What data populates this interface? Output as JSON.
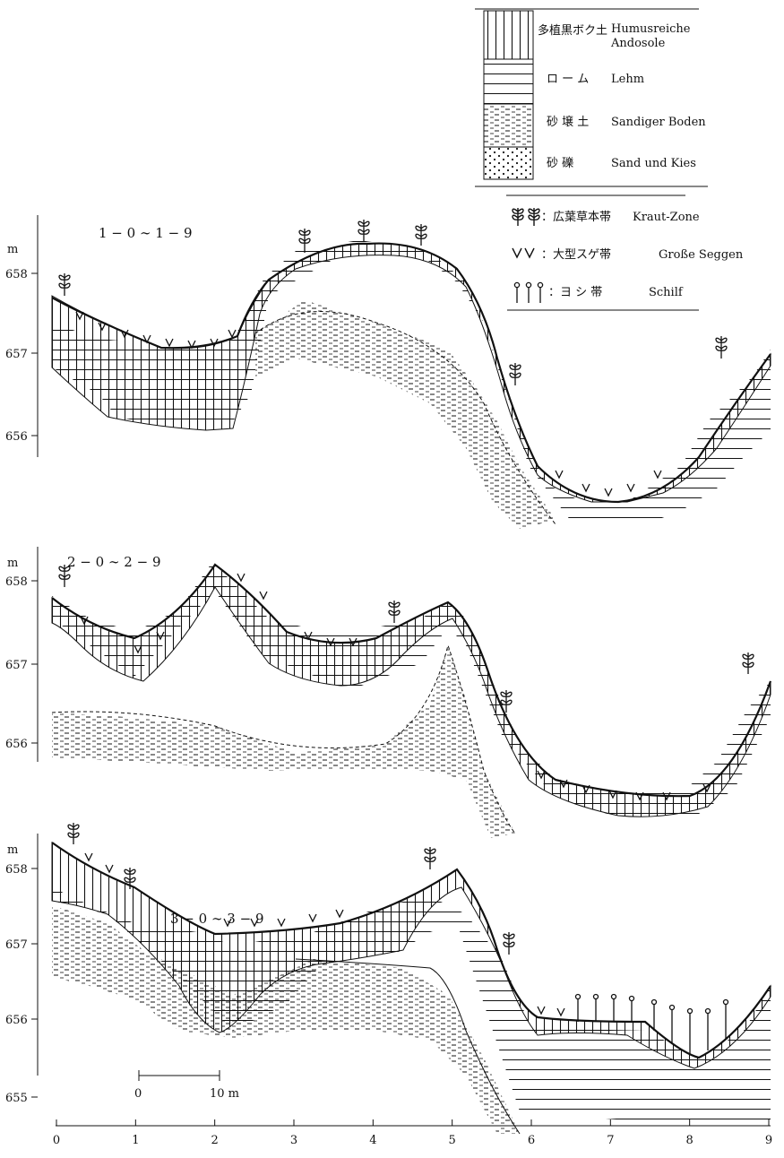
{
  "legend": {
    "soils": [
      {
        "ja": "多植黒ボク土",
        "de": "Humusreiche",
        "de2": "Andosole",
        "pattern": "vertical"
      },
      {
        "ja": "ロ ー ム",
        "de": "Lehm",
        "pattern": "horizontal"
      },
      {
        "ja": "砂 壌 土",
        "de": "Sandiger Boden",
        "pattern": "dashed"
      },
      {
        "ja": "砂 礫",
        "de": "Sand und Kies",
        "pattern": "dots"
      }
    ],
    "vegetation": [
      {
        "ja": "：広葉草本帯",
        "de": "Kraut-Zone",
        "icon": "herb-icon"
      },
      {
        "ja": "：大型スゲ帯",
        "de": "Große Seggen",
        "icon": "sedge-icon"
      },
      {
        "ja": "：ヨ シ 帯",
        "de": "Schilf",
        "icon": "reed-icon"
      }
    ]
  },
  "profiles": [
    {
      "id": "1",
      "title": "1 − 0 ∼ 1 − 9",
      "unit": "m",
      "ticks": [
        "658",
        "657",
        "656"
      ]
    },
    {
      "id": "2",
      "title": "2 − 0 ∼ 2 − 9",
      "unit": "m",
      "ticks": [
        "658",
        "657",
        "656"
      ]
    },
    {
      "id": "3",
      "title": "3 − 0 ∼ 3 − 9",
      "unit": "m",
      "ticks": [
        "658",
        "657",
        "656",
        "655"
      ]
    }
  ],
  "scale_bar": {
    "start": "0",
    "end": "10 m"
  },
  "x_axis": {
    "ticks": [
      "0",
      "1",
      "2",
      "3",
      "4",
      "5",
      "6",
      "7",
      "8",
      "9"
    ]
  }
}
